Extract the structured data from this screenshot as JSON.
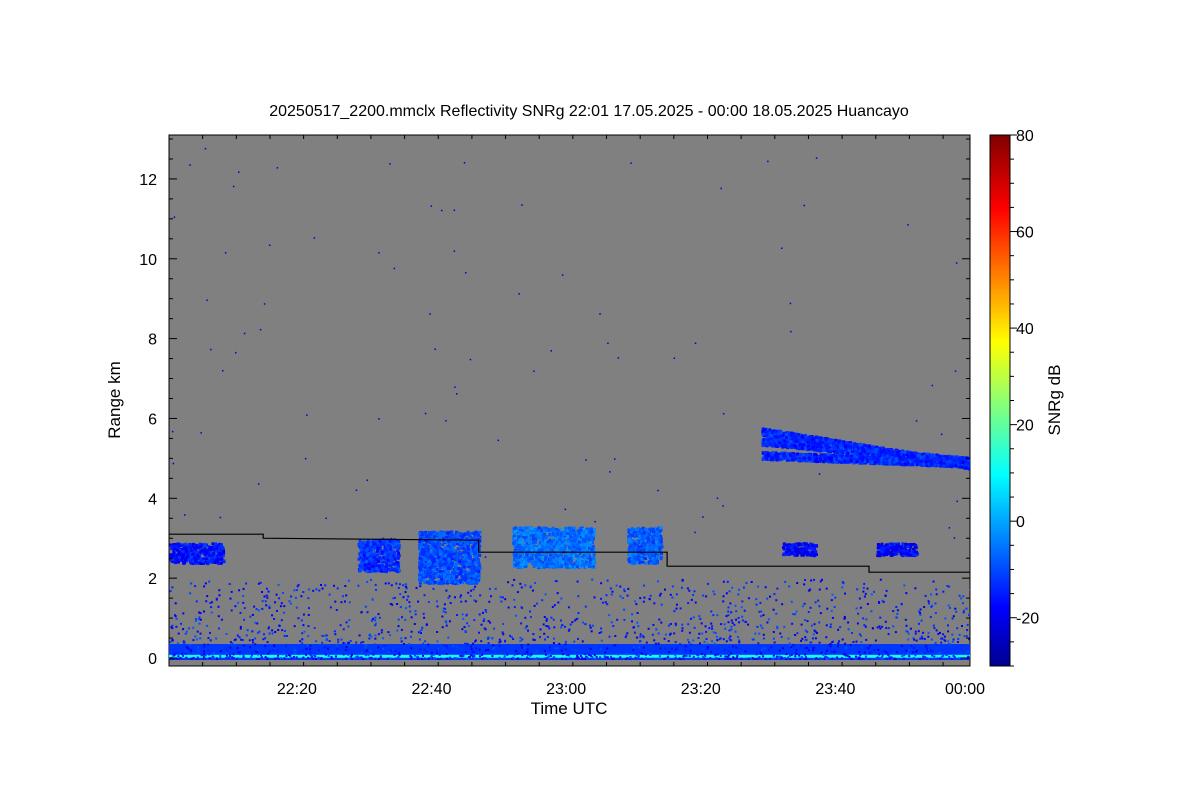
{
  "chart_data": {
    "type": "heatmap",
    "title": "20250517_2200.mmclx Reflectivity SNRg   22:01 17.05.2025 - 00:00 18.05.2025 Huancayo",
    "xlabel": "Time UTC",
    "ylabel": "Range km",
    "colorbar_label": "SNRg dB",
    "x_range": [
      "22:01",
      "00:00"
    ],
    "x_ticks": [
      {
        "label": "22:20",
        "t": 20
      },
      {
        "label": "22:40",
        "t": 40
      },
      {
        "label": "23:00",
        "t": 60
      },
      {
        "label": "23:20",
        "t": 80
      },
      {
        "label": "23:40",
        "t": 100
      },
      {
        "label": "00:00",
        "t": 120
      }
    ],
    "y_range": [
      0,
      13
    ],
    "y_ticks": [
      0,
      2,
      4,
      6,
      8,
      10,
      12
    ],
    "colorbar_range": [
      -30,
      80
    ],
    "colorbar_ticks": [
      -20,
      0,
      20,
      40,
      60,
      80
    ],
    "background_color": "#808080",
    "boundary_line": {
      "description_color": "#000000",
      "points": [
        {
          "t": 1,
          "km": 3.1
        },
        {
          "t": 15,
          "km": 3.1
        },
        {
          "t": 15,
          "km": 3.0
        },
        {
          "t": 47,
          "km": 2.95
        },
        {
          "t": 47,
          "km": 2.65
        },
        {
          "t": 75,
          "km": 2.65
        },
        {
          "t": 75,
          "km": 2.3
        },
        {
          "t": 105,
          "km": 2.3
        },
        {
          "t": 105,
          "km": 2.15
        },
        {
          "t": 120,
          "km": 2.15
        }
      ]
    },
    "cloud_regions": [
      {
        "t0": 1,
        "t1": 9,
        "km0": 2.4,
        "km1": 2.9,
        "snr": -18
      },
      {
        "t0": 29,
        "t1": 35,
        "km0": 2.2,
        "km1": 3.0,
        "snr": -15
      },
      {
        "t0": 38,
        "t1": 47,
        "km0": 1.9,
        "km1": 3.2,
        "snr": -12
      },
      {
        "t0": 52,
        "t1": 64,
        "km0": 2.3,
        "km1": 3.3,
        "snr": -8
      },
      {
        "t0": 69,
        "t1": 74,
        "km0": 2.4,
        "km1": 3.3,
        "snr": -10
      },
      {
        "t0": 92,
        "t1": 97,
        "km0": 2.6,
        "km1": 2.9,
        "snr": -20
      },
      {
        "t0": 106,
        "t1": 112,
        "km0": 2.6,
        "km1": 2.9,
        "snr": -20
      },
      {
        "t0": 89,
        "t1": 120,
        "km0": 4.6,
        "km1": 5.8,
        "snr": -16
      }
    ]
  }
}
